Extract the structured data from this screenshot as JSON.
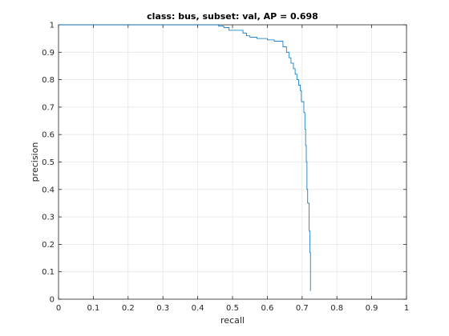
{
  "chart_data": {
    "type": "line",
    "title": "class: bus, subset: val, AP = 0.698",
    "xlabel": "recall",
    "ylabel": "precision",
    "xlim": [
      0,
      1
    ],
    "ylim": [
      0,
      1
    ],
    "xticks": [
      0,
      0.1,
      0.2,
      0.3,
      0.4,
      0.5,
      0.6,
      0.7,
      0.8,
      0.9,
      1
    ],
    "yticks": [
      0,
      0.1,
      0.2,
      0.3,
      0.4,
      0.5,
      0.6,
      0.7,
      0.8,
      0.9,
      1
    ],
    "xtick_labels": [
      "0",
      "0.1",
      "0.2",
      "0.3",
      "0.4",
      "0.5",
      "0.6",
      "0.7",
      "0.8",
      "0.9",
      "1"
    ],
    "ytick_labels": [
      "0",
      "0.1",
      "0.2",
      "0.3",
      "0.4",
      "0.5",
      "0.6",
      "0.7",
      "0.8",
      "0.9",
      "1"
    ],
    "grid": true,
    "line_color": "#0072bd",
    "grid_color": "#e6e6e6",
    "axes_color": "#262626",
    "series": [
      {
        "x": [
          0,
          0.46,
          0.46,
          0.475,
          0.475,
          0.49,
          0.49,
          0.53,
          0.53,
          0.54,
          0.54,
          0.55,
          0.55,
          0.57,
          0.57,
          0.6,
          0.6,
          0.62,
          0.62,
          0.645,
          0.645,
          0.655,
          0.655,
          0.662,
          0.662,
          0.668,
          0.668,
          0.675,
          0.675,
          0.68,
          0.68,
          0.685,
          0.685,
          0.69,
          0.69,
          0.695,
          0.695,
          0.698,
          0.698,
          0.705,
          0.705,
          0.708,
          0.708,
          0.71,
          0.71,
          0.712,
          0.712,
          0.714,
          0.714,
          0.716,
          0.716,
          0.72,
          0.72,
          0.722,
          0.722,
          0.724,
          0.724
        ],
        "y": [
          1,
          1,
          0.995,
          0.995,
          0.99,
          0.99,
          0.98,
          0.98,
          0.97,
          0.97,
          0.96,
          0.96,
          0.955,
          0.955,
          0.95,
          0.95,
          0.945,
          0.945,
          0.94,
          0.94,
          0.92,
          0.92,
          0.9,
          0.9,
          0.88,
          0.88,
          0.86,
          0.86,
          0.84,
          0.84,
          0.82,
          0.82,
          0.8,
          0.8,
          0.78,
          0.78,
          0.76,
          0.76,
          0.72,
          0.72,
          0.68,
          0.68,
          0.62,
          0.62,
          0.56,
          0.56,
          0.5,
          0.5,
          0.4,
          0.4,
          0.35,
          0.35,
          0.25,
          0.25,
          0.17,
          0.17,
          0.03
        ]
      }
    ]
  }
}
